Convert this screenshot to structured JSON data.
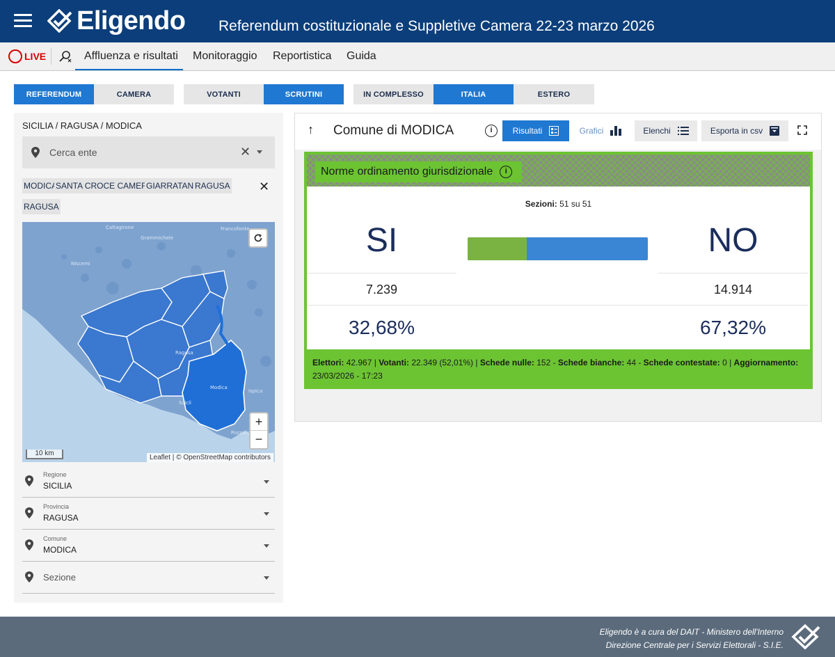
{
  "header": {
    "logo_text": "Eligendo",
    "title": "Referendum costituzionale e Suppletive Camera 22-23 marzo 2026"
  },
  "nav": {
    "live_label": "LIVE",
    "items": [
      "Affluenza e risultati",
      "Monitoraggio",
      "Reportistica",
      "Guida"
    ],
    "active": "Affluenza e risultati"
  },
  "toggles": {
    "election": [
      "REFERENDUM",
      "CAMERA"
    ],
    "mode": [
      "VOTANTI",
      "SCRUTINI"
    ],
    "scope": [
      "IN COMPLESSO",
      "ITALIA",
      "ESTERO"
    ]
  },
  "left": {
    "breadcrumb": "SICILIA / RAGUSA / MODICA",
    "search_placeholder": "Cerca ente",
    "chips": [
      "MODICA",
      "SANTA CROCE CAMERINA",
      "GIARRATANA",
      "RAGUSA",
      "RAGUSA"
    ],
    "map": {
      "labels": [
        "Caltagirone",
        "Grammichele",
        "Francofonte",
        "Niscemi",
        "Ragusa",
        "Modica",
        "Scicli",
        "Ispica",
        "Pozzallo"
      ],
      "scale": "10 km",
      "attribution_leaflet": "Leaflet",
      "attribution_osm": "© OpenStreetMap contributors"
    },
    "selects": [
      {
        "label": "Regione",
        "value": "SICILIA"
      },
      {
        "label": "Provincia",
        "value": "RAGUSA"
      },
      {
        "label": "Comune",
        "value": "MODICA"
      },
      {
        "label": "",
        "value": "Sezione"
      }
    ]
  },
  "right": {
    "title": "Comune di MODICA",
    "buttons": {
      "risultati": "Risultati",
      "grafici": "Grafici",
      "elenchi": "Elenchi",
      "esporta": "Esporta in csv"
    },
    "quesito": "Norme ordinamento giurisdizionale",
    "sezioni_label": "Sezioni:",
    "sezioni_value": "51 su 51",
    "si_label": "SI",
    "no_label": "NO",
    "si_votes": "7.239",
    "no_votes": "14.914",
    "si_pct": "32,68%",
    "no_pct": "67,32%",
    "si_fraction": 0.3268,
    "footer": {
      "elettori_label": "Elettori:",
      "elettori": "42.967",
      "votanti_label": "Votanti:",
      "votanti": "22.349 (52,01%)",
      "nulle_label": "Schede nulle:",
      "nulle": "152",
      "bianche_label": "Schede bianche:",
      "bianche": "44",
      "contestate_label": "Schede contestate:",
      "contestate": "0",
      "aggiornamento_label": "Aggiornamento:",
      "aggiornamento": "23/03/2026 - 17:23"
    }
  },
  "footer": {
    "line1": "Eligendo è a cura del DAIT - Ministero dell'Interno",
    "line2": "Direzione Centrale per i Servizi Elettorali - S.I.E."
  },
  "colors": {
    "header_bg": "#0b3e7a",
    "accent_blue": "#1f78d1",
    "si_green": "#7bb342",
    "no_blue": "#3a86d4",
    "result_green": "#6cc432",
    "footer_bg": "#5b6b7c"
  }
}
